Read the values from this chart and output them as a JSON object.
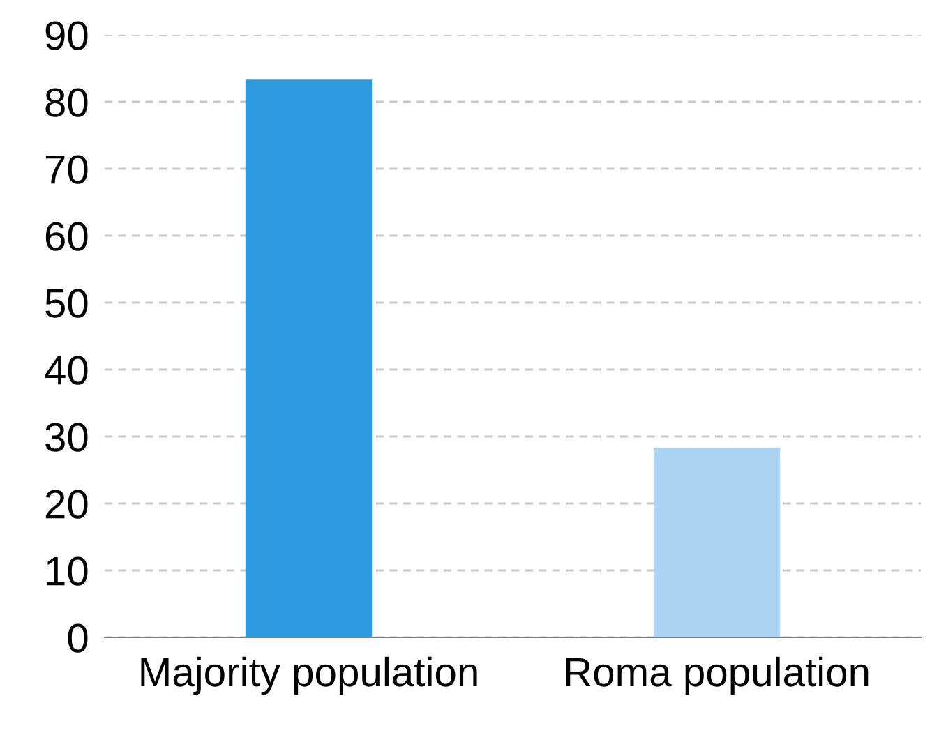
{
  "chart_data": {
    "type": "bar",
    "categories": [
      "Majority population",
      "Roma population"
    ],
    "values": [
      83.3,
      28.3
    ],
    "colors": [
      "#2e9be0",
      "#acd4f2"
    ],
    "ylim": [
      0,
      90
    ],
    "yticks": [
      0,
      10,
      20,
      30,
      40,
      50,
      60,
      70,
      80,
      90
    ],
    "grid": "y"
  }
}
